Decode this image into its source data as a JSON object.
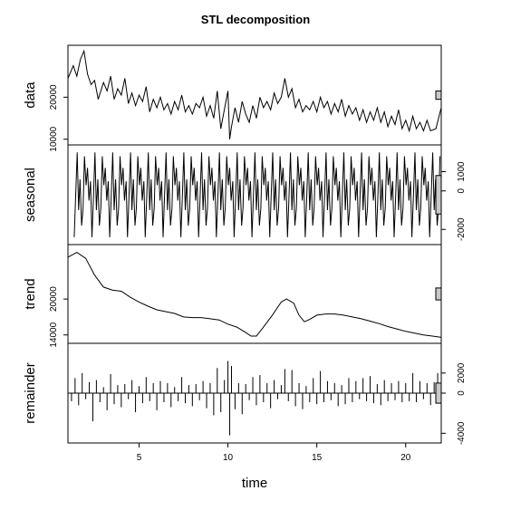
{
  "chart_data": {
    "type": "line",
    "title": "STL decomposition",
    "xlabel": "time",
    "x_range": [
      1,
      22
    ],
    "x_ticks": [
      5,
      10,
      15,
      20
    ],
    "panels": [
      {
        "name": "data",
        "ylabel": "data",
        "y_ticks": [
          10000,
          20000
        ],
        "y_tick_side": "left",
        "ylim": [
          9500,
          31500
        ],
        "series": {
          "x": [
            1.0,
            1.3,
            1.5,
            1.7,
            1.9,
            2.1,
            2.3,
            2.5,
            2.7,
            3.0,
            3.2,
            3.4,
            3.6,
            3.8,
            4.0,
            4.2,
            4.4,
            4.6,
            4.8,
            5.0,
            5.2,
            5.4,
            5.6,
            5.8,
            6.0,
            6.2,
            6.4,
            6.6,
            6.8,
            7.0,
            7.2,
            7.4,
            7.6,
            7.8,
            8.0,
            8.2,
            8.4,
            8.6,
            8.8,
            9.0,
            9.2,
            9.4,
            9.6,
            9.8,
            10.0,
            10.1,
            10.2,
            10.4,
            10.6,
            10.8,
            11.0,
            11.2,
            11.4,
            11.6,
            11.8,
            12.0,
            12.2,
            12.4,
            12.6,
            12.8,
            13.0,
            13.2,
            13.4,
            13.6,
            13.8,
            14.0,
            14.2,
            14.4,
            14.6,
            14.8,
            15.0,
            15.2,
            15.4,
            15.6,
            15.8,
            16.0,
            16.2,
            16.4,
            16.6,
            16.8,
            17.0,
            17.2,
            17.4,
            17.6,
            17.8,
            18.0,
            18.2,
            18.4,
            18.6,
            18.8,
            19.0,
            19.2,
            19.4,
            19.6,
            19.8,
            20.0,
            20.2,
            20.4,
            20.6,
            20.8,
            21.0,
            21.2,
            21.4,
            21.7,
            22.0
          ],
          "values": [
            24500,
            27500,
            25000,
            29000,
            31000,
            25500,
            23000,
            24000,
            19500,
            23500,
            21500,
            25000,
            19500,
            22000,
            20500,
            24500,
            18500,
            21000,
            18000,
            20500,
            19000,
            22500,
            16500,
            19500,
            17500,
            20000,
            17000,
            18500,
            16000,
            19000,
            17000,
            20500,
            16500,
            18000,
            16000,
            18500,
            17500,
            20000,
            15500,
            18000,
            15000,
            21500,
            12500,
            17000,
            21500,
            10000,
            13000,
            17500,
            14000,
            19000,
            16000,
            14000,
            18000,
            15000,
            20000,
            17500,
            19000,
            17000,
            21000,
            18500,
            20000,
            24500,
            20000,
            22000,
            17500,
            19500,
            16500,
            18000,
            17000,
            19000,
            16500,
            20000,
            17500,
            19000,
            16000,
            18500,
            16500,
            19500,
            15500,
            18000,
            16000,
            17500,
            14500,
            17000,
            14000,
            16500,
            14500,
            17500,
            14000,
            16500,
            13000,
            15500,
            13500,
            17000,
            12500,
            14500,
            12000,
            15500,
            12500,
            14000,
            12000,
            14500,
            12000,
            12500,
            17500
          ]
        }
      },
      {
        "name": "seasonal",
        "ylabel": "seasonal",
        "y_ticks": [
          -2000,
          0,
          1000
        ],
        "y_tick_side": "right",
        "ylim": [
          -2600,
          2200
        ],
        "season_start": 1.35,
        "season_shape": [
          [
            0.0,
            -2400
          ],
          [
            0.08,
            -400
          ],
          [
            0.17,
            2000
          ],
          [
            0.25,
            -1000
          ],
          [
            0.33,
            600
          ],
          [
            0.42,
            -1800
          ],
          [
            0.5,
            -900
          ],
          [
            0.58,
            1800
          ],
          [
            0.67,
            300
          ],
          [
            0.75,
            1200
          ],
          [
            0.83,
            -500
          ],
          [
            0.92,
            500
          ],
          [
            1.0,
            -2400
          ]
        ]
      },
      {
        "name": "trend",
        "ylabel": "trend",
        "y_ticks": [
          14000,
          20000
        ],
        "y_tick_side": "left",
        "ylim": [
          13200,
          28500
        ],
        "series": {
          "x": [
            1.0,
            1.5,
            2.0,
            2.5,
            3.0,
            3.5,
            4.0,
            4.5,
            5.0,
            5.5,
            6.0,
            6.5,
            7.0,
            7.5,
            8.0,
            8.5,
            9.0,
            9.5,
            10.0,
            10.5,
            11.0,
            11.3,
            11.6,
            12.0,
            12.5,
            13.0,
            13.3,
            13.7,
            14.0,
            14.3,
            14.6,
            15.0,
            15.5,
            16.0,
            16.5,
            17.0,
            17.5,
            18.0,
            18.5,
            19.0,
            19.5,
            20.0,
            20.5,
            21.0,
            21.5,
            22.0
          ],
          "values": [
            27000,
            27800,
            26800,
            24000,
            22000,
            21500,
            21300,
            20300,
            19500,
            18800,
            18200,
            17900,
            17600,
            17000,
            16900,
            16900,
            16700,
            16500,
            15800,
            15300,
            14400,
            13800,
            13800,
            15300,
            17300,
            19500,
            20000,
            19300,
            17300,
            16200,
            16600,
            17300,
            17500,
            17500,
            17300,
            17000,
            16700,
            16300,
            15900,
            15400,
            15000,
            14600,
            14300,
            14000,
            13800,
            13600
          ]
        }
      },
      {
        "name": "remainder",
        "ylabel": "remainder",
        "y_ticks": [
          -4000,
          0,
          2000
        ],
        "y_tick_side": "right",
        "ylim": [
          -4600,
          4600
        ],
        "series": {
          "x": [
            1.2,
            1.4,
            1.6,
            1.8,
            2.0,
            2.2,
            2.4,
            2.6,
            2.8,
            3.0,
            3.2,
            3.4,
            3.6,
            3.8,
            4.0,
            4.2,
            4.4,
            4.6,
            4.8,
            5.0,
            5.2,
            5.4,
            5.6,
            5.8,
            6.0,
            6.2,
            6.4,
            6.6,
            6.8,
            7.0,
            7.2,
            7.4,
            7.6,
            7.8,
            8.0,
            8.2,
            8.4,
            8.6,
            8.8,
            9.0,
            9.2,
            9.4,
            9.6,
            9.8,
            10.0,
            10.1,
            10.2,
            10.4,
            10.6,
            10.8,
            11.0,
            11.2,
            11.4,
            11.6,
            11.8,
            12.0,
            12.2,
            12.4,
            12.6,
            12.8,
            13.0,
            13.2,
            13.4,
            13.6,
            13.8,
            14.0,
            14.2,
            14.4,
            14.6,
            14.8,
            15.0,
            15.2,
            15.4,
            15.6,
            15.8,
            16.0,
            16.2,
            16.4,
            16.6,
            16.8,
            17.0,
            17.2,
            17.4,
            17.6,
            17.8,
            18.0,
            18.2,
            18.4,
            18.6,
            18.8,
            19.0,
            19.2,
            19.4,
            19.6,
            19.8,
            20.0,
            20.2,
            20.4,
            20.6,
            20.8,
            21.0,
            21.2,
            21.4,
            21.6,
            21.8
          ],
          "values": [
            -800,
            1500,
            -1200,
            2000,
            -600,
            1100,
            -2800,
            1300,
            -900,
            600,
            -1700,
            1900,
            -1100,
            800,
            -1400,
            900,
            -600,
            1300,
            -1900,
            700,
            -1000,
            1600,
            -800,
            1000,
            -1700,
            1200,
            -900,
            1000,
            -1400,
            600,
            -800,
            1600,
            -1000,
            800,
            -1300,
            900,
            -700,
            1200,
            -1500,
            1000,
            -2200,
            2500,
            -1900,
            1300,
            3200,
            -4200,
            2700,
            -1600,
            1000,
            -2100,
            900,
            -700,
            1600,
            -1200,
            1800,
            -900,
            1000,
            -1500,
            1300,
            -600,
            800,
            2400,
            -800,
            2300,
            -1300,
            1000,
            -1600,
            700,
            -900,
            1500,
            -1100,
            2200,
            -900,
            1200,
            -700,
            1000,
            -1300,
            800,
            -1100,
            1500,
            -900,
            1200,
            -600,
            1500,
            -800,
            1700,
            -1000,
            900,
            -1200,
            1300,
            -800,
            1000,
            -700,
            1200,
            -900,
            1000,
            -800,
            2000,
            -900,
            1200,
            -600,
            1000,
            -1200,
            1100,
            2000
          ]
        }
      }
    ]
  }
}
